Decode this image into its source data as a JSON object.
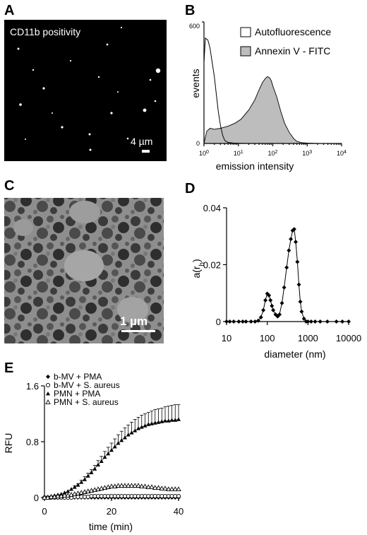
{
  "panels": {
    "A": {
      "label": "A",
      "caption": "CD11b positivity",
      "scale_bar": "4 µm"
    },
    "B": {
      "label": "B",
      "y_axis_label": "events",
      "y_tick_top": "600",
      "y_tick_zero": "0",
      "x_axis_label": "emission intensity",
      "legend": [
        "Autofluorescence",
        "Annexin V - FITC"
      ]
    },
    "C": {
      "label": "C",
      "scale_bar": "1 µm"
    },
    "D": {
      "label": "D",
      "y_axis_label": "a(r",
      "y_axis_label_sub": "h",
      "y_axis_label_close": ")",
      "x_axis_label": "diameter (nm)"
    },
    "E": {
      "label": "E",
      "y_axis_label": "RFU",
      "x_axis_label": "time (min)"
    }
  },
  "chart_data": [
    {
      "panel": "B",
      "type": "area",
      "x_scale": "log",
      "xlim": [
        1,
        10000
      ],
      "ylim": [
        0,
        600
      ],
      "xticks": [
        {
          "v": 1,
          "b": "10",
          "e": "0"
        },
        {
          "v": 10,
          "b": "10",
          "e": "1"
        },
        {
          "v": 100,
          "b": "10",
          "e": "2"
        },
        {
          "v": 1000,
          "b": "10",
          "e": "3"
        },
        {
          "v": 10000,
          "b": "10",
          "e": "4"
        }
      ],
      "series": [
        {
          "name": "Autofluorescence",
          "x": [
            1.0,
            1.1,
            1.3,
            1.5,
            1.7,
            2.0,
            2.3,
            2.6,
            3.0,
            3.5,
            4.0,
            5.0,
            7.0,
            10,
            20,
            50,
            100,
            1000,
            10000
          ],
          "y": [
            400,
            520,
            510,
            470,
            410,
            330,
            240,
            160,
            90,
            40,
            15,
            5,
            2,
            1,
            0,
            0,
            0,
            0,
            0
          ]
        },
        {
          "name": "Annexin V - FITC",
          "x": [
            1.0,
            1.2,
            1.5,
            2.0,
            3.0,
            5.0,
            8.0,
            12,
            20,
            30,
            40,
            50,
            60,
            70,
            80,
            90,
            100,
            130,
            170,
            220,
            300,
            400,
            500,
            700,
            1000,
            2000,
            10000
          ],
          "y": [
            0,
            60,
            75,
            70,
            75,
            85,
            100,
            120,
            165,
            215,
            265,
            300,
            320,
            330,
            325,
            310,
            285,
            230,
            160,
            100,
            55,
            25,
            10,
            4,
            2,
            0,
            0
          ]
        }
      ]
    },
    {
      "panel": "D",
      "type": "line",
      "x_scale": "log",
      "xlim": [
        10,
        10000
      ],
      "ylim": [
        0,
        0.04
      ],
      "xticks": [
        10,
        100,
        1000,
        10000
      ],
      "yticks": [
        0,
        0.02,
        0.04
      ],
      "series": [
        {
          "x": [
            10,
            12,
            15,
            20,
            25,
            30,
            40,
            50,
            60,
            70,
            80,
            90,
            100,
            110,
            120,
            130,
            140,
            160,
            180,
            200,
            230,
            260,
            300,
            340,
            380,
            420,
            460,
            500,
            550,
            600,
            650,
            700,
            800,
            900,
            1000,
            1200,
            1500,
            2000,
            3000,
            5000,
            7000,
            10000
          ],
          "y": [
            0,
            0,
            0,
            0,
            0,
            0,
            0,
            0,
            0.0003,
            0.0015,
            0.004,
            0.0075,
            0.0098,
            0.0092,
            0.0075,
            0.0055,
            0.004,
            0.0025,
            0.0018,
            0.0025,
            0.0065,
            0.012,
            0.019,
            0.025,
            0.029,
            0.032,
            0.0325,
            0.028,
            0.021,
            0.013,
            0.007,
            0.0035,
            0.001,
            0,
            0,
            0,
            0,
            0,
            0,
            0,
            0,
            0
          ]
        }
      ]
    },
    {
      "panel": "E",
      "type": "line",
      "xlim": [
        0,
        40
      ],
      "ylim": [
        0,
        1.6
      ],
      "xticks": [
        0,
        20,
        40
      ],
      "yticks": [
        0,
        0.8,
        1.6
      ],
      "legend": [
        "b-MV + PMA",
        "b-MV + S. aureus",
        "PMN + PMA",
        "PMN +  S. aureus"
      ],
      "x": [
        0,
        1,
        2,
        3,
        4,
        5,
        6,
        7,
        8,
        9,
        10,
        11,
        12,
        13,
        14,
        15,
        16,
        17,
        18,
        19,
        20,
        21,
        22,
        23,
        24,
        25,
        26,
        27,
        28,
        29,
        30,
        31,
        32,
        33,
        34,
        35,
        36,
        37,
        38,
        39,
        40
      ],
      "series": [
        {
          "name": "b-MV + PMA",
          "marker": "diamond-filled",
          "y": [
            0,
            0,
            0,
            0,
            0,
            0,
            0,
            0,
            0,
            0,
            0,
            0,
            0,
            0,
            0,
            0,
            0,
            0,
            0,
            0,
            0,
            0,
            0,
            0,
            0,
            0,
            0,
            0,
            0,
            0,
            0,
            0,
            0,
            0,
            0,
            0,
            0,
            0,
            0,
            0,
            0
          ]
        },
        {
          "name": "b-MV + S. aureus",
          "marker": "circle-open",
          "y": [
            0,
            0,
            0,
            0,
            0,
            0,
            0,
            0,
            0,
            0.01,
            0.01,
            0.01,
            0.01,
            0.01,
            0.02,
            0.02,
            0.02,
            0.02,
            0.02,
            0.02,
            0.02,
            0.02,
            0.02,
            0.02,
            0.02,
            0.02,
            0.02,
            0.02,
            0.02,
            0.02,
            0.02,
            0.02,
            0.02,
            0.02,
            0.02,
            0.02,
            0.02,
            0.02,
            0.02,
            0.02,
            0.02
          ]
        },
        {
          "name": "PMN + PMA",
          "marker": "triangle-filled",
          "y": [
            0,
            0.01,
            0.02,
            0.03,
            0.04,
            0.05,
            0.07,
            0.09,
            0.12,
            0.15,
            0.18,
            0.22,
            0.26,
            0.31,
            0.36,
            0.41,
            0.47,
            0.52,
            0.58,
            0.63,
            0.68,
            0.73,
            0.78,
            0.82,
            0.86,
            0.9,
            0.93,
            0.96,
            0.99,
            1.01,
            1.03,
            1.05,
            1.06,
            1.07,
            1.08,
            1.09,
            1.1,
            1.1,
            1.11,
            1.11,
            1.12
          ]
        },
        {
          "name": "PMN +  S. aureus",
          "marker": "triangle-open",
          "y": [
            0,
            0,
            0.01,
            0.01,
            0.02,
            0.02,
            0.03,
            0.03,
            0.04,
            0.05,
            0.06,
            0.07,
            0.08,
            0.09,
            0.1,
            0.11,
            0.12,
            0.13,
            0.14,
            0.15,
            0.16,
            0.16,
            0.17,
            0.17,
            0.17,
            0.17,
            0.17,
            0.17,
            0.17,
            0.16,
            0.16,
            0.15,
            0.15,
            0.14,
            0.14,
            0.13,
            0.13,
            0.12,
            0.12,
            0.12,
            0.12
          ]
        }
      ],
      "error_top": [
        0,
        0.01,
        0.02,
        0.03,
        0.05,
        0.06,
        0.08,
        0.1,
        0.13,
        0.17,
        0.2,
        0.25,
        0.3,
        0.35,
        0.4,
        0.46,
        0.53,
        0.59,
        0.66,
        0.72,
        0.78,
        0.84,
        0.9,
        0.95,
        1.0,
        1.04,
        1.08,
        1.12,
        1.15,
        1.18,
        1.2,
        1.22,
        1.24,
        1.26,
        1.27,
        1.28,
        1.3,
        1.31,
        1.32,
        1.33,
        1.33
      ]
    }
  ]
}
